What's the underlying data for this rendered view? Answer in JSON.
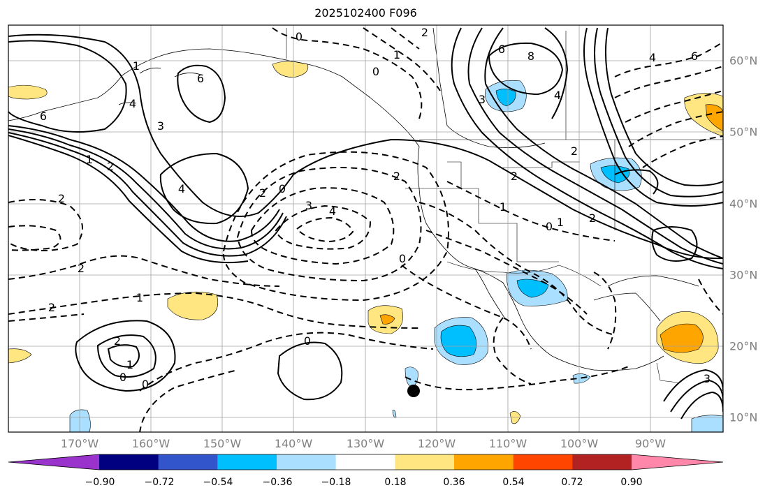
{
  "title": "2025102400 F096",
  "lon_labels": [
    "170°W",
    "160°W",
    "150°W",
    "140°W",
    "130°W",
    "120°W",
    "110°W",
    "100°W",
    "90°W"
  ],
  "lat_labels": [
    "60°N",
    "50°N",
    "40°N",
    "30°N",
    "20°N",
    "10°N"
  ],
  "colorbar": {
    "colors": [
      "#9933cc",
      "#000080",
      "#3355cc",
      "#00bfff",
      "#aadfff",
      "#ffffff",
      "#ffe680",
      "#ffa500",
      "#ff4500",
      "#b22222",
      "#ff88aa"
    ],
    "tick_labels": [
      "−0.90",
      "−0.72",
      "−0.54",
      "−0.36",
      "−0.18",
      "0.18",
      "0.36",
      "0.54",
      "0.72",
      "0.90"
    ]
  },
  "contour_labels": [
    {
      "text": "0"
    },
    {
      "text": "2"
    },
    {
      "text": "1"
    },
    {
      "text": "0"
    },
    {
      "text": "6"
    },
    {
      "text": "8"
    },
    {
      "text": "3"
    },
    {
      "text": "4"
    },
    {
      "text": "6"
    },
    {
      "text": "4"
    },
    {
      "text": "1"
    },
    {
      "text": "3"
    },
    {
      "text": "6"
    },
    {
      "text": "4"
    },
    {
      "text": "2"
    },
    {
      "text": "0"
    },
    {
      "text": "3"
    },
    {
      "text": "4"
    },
    {
      "text": "2"
    },
    {
      "text": "2"
    },
    {
      "text": "1"
    },
    {
      "text": "2"
    },
    {
      "text": "0"
    },
    {
      "text": "2"
    },
    {
      "text": "1"
    },
    {
      "text": "2"
    },
    {
      "text": "2"
    },
    {
      "text": "1"
    },
    {
      "text": "0"
    },
    {
      "text": "0"
    },
    {
      "text": "2"
    },
    {
      "text": "1"
    },
    {
      "text": "0"
    },
    {
      "text": "2"
    },
    {
      "text": "2"
    },
    {
      "text": "0"
    },
    {
      "text": "1"
    },
    {
      "text": "4"
    },
    {
      "text": "6"
    },
    {
      "text": "3"
    }
  ]
}
